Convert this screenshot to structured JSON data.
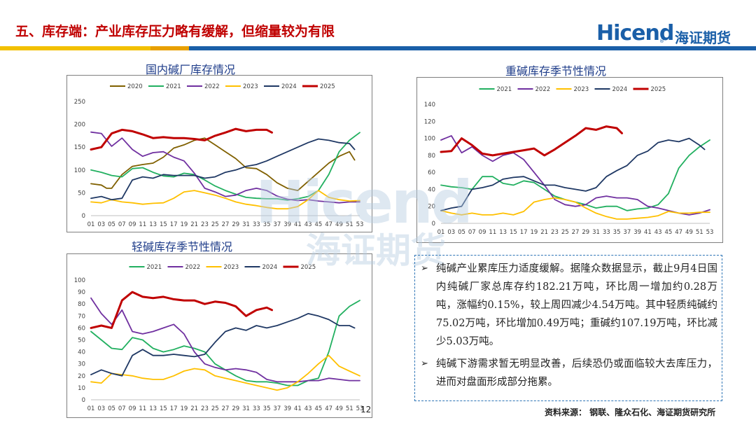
{
  "header": {
    "title": "五、库存端：产业库存压力略有缓解，但缩量较为有限",
    "logo_en": "Hicend",
    "logo_reg": "®",
    "logo_cn": "海证期货"
  },
  "watermark": {
    "en": "Hicend",
    "cn": "海证期货"
  },
  "charts": {
    "c1_title": "国内碱厂库存情况",
    "c2_title": "重碱库存季节性情况",
    "c3_title": "轻碱库存季节性情况"
  },
  "textbox": {
    "bullet_symbol": "➢",
    "p1": "纯碱产业累库压力适度缓解。据隆众数据显示，截止9月4日国内纯碱厂家总库存约182.21万吨，环比周一增加约0.28万吨，涨幅约0.15%，较上周四减少4.54万吨。其中轻质纯碱约75.02万吨，环比增加0.49万吨；重碱约107.19万吨，环比减少5.03万吨。",
    "p2": "纯碱下游需求暂无明显改善，后续恐仍或面临较大去库压力，进而对盘面形成部分拖累。"
  },
  "footer": {
    "source": "资料来源：  钢联、隆众石化、海证期货研究所",
    "page": "12"
  },
  "colors": {
    "2020": "#806000",
    "2021": "#22b060",
    "2022": "#7030a0",
    "2023": "#ffc000",
    "2024": "#1f3864",
    "2025": "#c00000"
  },
  "chart_data": [
    {
      "type": "line",
      "title": "国内碱厂库存情况",
      "xlabel": "",
      "ylabel": "",
      "ylim": [
        0,
        250
      ],
      "yticks": [
        0,
        50,
        100,
        150,
        200,
        250
      ],
      "xticks": [
        "01",
        "03",
        "05",
        "07",
        "09",
        "11",
        "13",
        "15",
        "17",
        "19",
        "21",
        "23",
        "25",
        "27",
        "29",
        "31",
        "33",
        "35",
        "37",
        "39",
        "41",
        "43",
        "45",
        "47",
        "49",
        "51",
        "53"
      ],
      "legend": "top",
      "grid": false,
      "series": [
        {
          "name": "2020",
          "color": "#806000",
          "x": [
            1,
            3,
            4,
            5,
            7,
            9,
            11,
            13,
            15,
            17,
            19,
            21,
            23,
            25,
            27,
            29,
            31,
            33,
            35,
            37,
            39,
            41,
            43,
            45,
            47,
            49,
            51,
            52
          ],
          "values": [
            70,
            67,
            60,
            60,
            90,
            108,
            112,
            115,
            128,
            148,
            155,
            165,
            170,
            155,
            140,
            125,
            105,
            103,
            90,
            72,
            60,
            55,
            75,
            95,
            115,
            130,
            140,
            122
          ]
        },
        {
          "name": "2021",
          "color": "#22b060",
          "x": [
            1,
            3,
            5,
            7,
            9,
            11,
            13,
            15,
            17,
            19,
            21,
            23,
            25,
            27,
            29,
            31,
            33,
            35,
            37,
            39,
            41,
            43,
            45,
            47,
            49,
            51,
            53
          ],
          "values": [
            100,
            95,
            88,
            85,
            103,
            105,
            95,
            87,
            85,
            93,
            90,
            78,
            65,
            55,
            47,
            40,
            38,
            37,
            37,
            34,
            37,
            42,
            55,
            90,
            140,
            165,
            182
          ]
        },
        {
          "name": "2022",
          "color": "#7030a0",
          "x": [
            1,
            3,
            5,
            7,
            9,
            11,
            13,
            15,
            17,
            19,
            21,
            23,
            25,
            27,
            29,
            31,
            33,
            35,
            37,
            39,
            41,
            43,
            45,
            47,
            49,
            51,
            53
          ],
          "values": [
            183,
            180,
            152,
            170,
            145,
            130,
            138,
            140,
            128,
            120,
            93,
            60,
            52,
            42,
            45,
            55,
            60,
            55,
            43,
            36,
            33,
            35,
            32,
            30,
            28,
            30,
            30
          ]
        },
        {
          "name": "2023",
          "color": "#ffc000",
          "x": [
            1,
            3,
            5,
            7,
            9,
            11,
            13,
            15,
            17,
            19,
            21,
            23,
            25,
            27,
            29,
            31,
            33,
            35,
            37,
            39,
            41,
            43,
            45,
            47,
            49,
            51,
            53
          ],
          "values": [
            30,
            28,
            35,
            30,
            28,
            25,
            27,
            28,
            38,
            52,
            55,
            50,
            45,
            38,
            30,
            25,
            22,
            18,
            15,
            15,
            20,
            35,
            55,
            40,
            35,
            32,
            33
          ]
        },
        {
          "name": "2024",
          "color": "#1f3864",
          "x": [
            1,
            3,
            5,
            7,
            9,
            11,
            13,
            15,
            17,
            19,
            21,
            23,
            25,
            27,
            29,
            31,
            33,
            35,
            37,
            39,
            41,
            43,
            45,
            47,
            49,
            51,
            52
          ],
          "values": [
            38,
            42,
            35,
            38,
            78,
            85,
            82,
            90,
            88,
            88,
            88,
            82,
            85,
            95,
            100,
            108,
            112,
            120,
            130,
            140,
            150,
            160,
            168,
            165,
            160,
            158,
            145
          ]
        },
        {
          "name": "2025",
          "color": "#c00000",
          "x": [
            1,
            3,
            5,
            7,
            9,
            11,
            13,
            15,
            17,
            19,
            21,
            23,
            25,
            27,
            29,
            31,
            33,
            35,
            36
          ],
          "values": [
            145,
            150,
            180,
            188,
            185,
            178,
            170,
            172,
            170,
            170,
            168,
            165,
            175,
            182,
            190,
            185,
            188,
            188,
            182
          ]
        }
      ]
    },
    {
      "type": "line",
      "title": "重碱库存季节性情况",
      "xlabel": "",
      "ylabel": "",
      "ylim": [
        0,
        140
      ],
      "yticks": [
        0,
        20,
        40,
        60,
        80,
        100,
        120,
        140
      ],
      "xticks": [
        "01",
        "03",
        "05",
        "07",
        "09",
        "11",
        "13",
        "15",
        "17",
        "19",
        "21",
        "23",
        "25",
        "27",
        "29",
        "31",
        "33",
        "35",
        "37",
        "39",
        "41",
        "43",
        "45",
        "47",
        "49",
        "51",
        "53"
      ],
      "legend": "top",
      "grid": false,
      "series": [
        {
          "name": "2021",
          "color": "#22b060",
          "x": [
            1,
            3,
            5,
            7,
            9,
            11,
            13,
            15,
            17,
            19,
            21,
            23,
            25,
            27,
            29,
            31,
            33,
            35,
            37,
            39,
            41,
            43,
            45,
            47,
            49,
            51,
            53
          ],
          "values": [
            45,
            43,
            42,
            40,
            55,
            55,
            47,
            45,
            50,
            48,
            40,
            32,
            28,
            25,
            22,
            18,
            20,
            20,
            15,
            17,
            18,
            22,
            35,
            65,
            80,
            90,
            98
          ]
        },
        {
          "name": "2022",
          "color": "#7030a0",
          "x": [
            1,
            3,
            5,
            7,
            9,
            11,
            13,
            15,
            17,
            19,
            21,
            23,
            25,
            27,
            29,
            31,
            33,
            35,
            37,
            39,
            41,
            43,
            45,
            47,
            49,
            51,
            53
          ],
          "values": [
            98,
            103,
            83,
            90,
            80,
            73,
            80,
            83,
            75,
            60,
            45,
            28,
            22,
            20,
            22,
            30,
            32,
            30,
            30,
            28,
            20,
            18,
            15,
            12,
            10,
            12,
            16
          ]
        },
        {
          "name": "2023",
          "color": "#ffc000",
          "x": [
            1,
            3,
            5,
            7,
            9,
            11,
            13,
            15,
            17,
            19,
            21,
            23,
            25,
            27,
            29,
            31,
            33,
            35,
            37,
            39,
            41,
            43,
            45,
            47,
            49,
            51,
            53
          ],
          "values": [
            15,
            12,
            10,
            12,
            10,
            10,
            12,
            10,
            14,
            25,
            28,
            30,
            28,
            25,
            18,
            12,
            8,
            5,
            5,
            6,
            7,
            9,
            14,
            12,
            12,
            13,
            13
          ]
        },
        {
          "name": "2024",
          "color": "#1f3864",
          "x": [
            1,
            3,
            5,
            7,
            9,
            11,
            13,
            15,
            17,
            19,
            21,
            23,
            25,
            27,
            29,
            31,
            33,
            35,
            37,
            39,
            41,
            43,
            45,
            47,
            49,
            51,
            52
          ],
          "values": [
            15,
            18,
            20,
            40,
            42,
            45,
            52,
            54,
            55,
            50,
            45,
            45,
            42,
            40,
            38,
            42,
            55,
            62,
            68,
            80,
            85,
            95,
            98,
            96,
            100,
            92,
            87
          ]
        },
        {
          "name": "2025",
          "color": "#c00000",
          "x": [
            1,
            3,
            5,
            7,
            9,
            11,
            13,
            15,
            17,
            19,
            21,
            23,
            25,
            27,
            29,
            31,
            33,
            35,
            36
          ],
          "values": [
            84,
            85,
            100,
            92,
            82,
            80,
            82,
            84,
            86,
            88,
            80,
            87,
            95,
            103,
            112,
            110,
            114,
            112,
            106
          ]
        }
      ]
    },
    {
      "type": "line",
      "title": "轻碱库存季节性情况",
      "xlabel": "",
      "ylabel": "",
      "ylim": [
        0,
        100
      ],
      "yticks": [
        0,
        10,
        20,
        30,
        40,
        50,
        60,
        70,
        80,
        90,
        100
      ],
      "xticks": [
        "01",
        "03",
        "05",
        "07",
        "09",
        "11",
        "13",
        "15",
        "17",
        "19",
        "21",
        "23",
        "25",
        "27",
        "29",
        "31",
        "33",
        "35",
        "37",
        "39",
        "41",
        "43",
        "45",
        "47",
        "49",
        "51",
        "53"
      ],
      "legend": "top",
      "grid": false,
      "series": [
        {
          "name": "2021",
          "color": "#22b060",
          "x": [
            1,
            3,
            5,
            7,
            9,
            11,
            13,
            15,
            17,
            19,
            21,
            23,
            25,
            27,
            29,
            31,
            33,
            35,
            37,
            39,
            41,
            43,
            45,
            47,
            49,
            51,
            53
          ],
          "values": [
            57,
            50,
            43,
            42,
            52,
            50,
            43,
            40,
            42,
            45,
            43,
            40,
            30,
            25,
            20,
            16,
            15,
            15,
            14,
            12,
            12,
            16,
            18,
            40,
            70,
            78,
            83
          ]
        },
        {
          "name": "2022",
          "color": "#7030a0",
          "x": [
            1,
            3,
            5,
            7,
            9,
            11,
            13,
            15,
            17,
            19,
            21,
            23,
            25,
            27,
            29,
            31,
            33,
            35,
            37,
            39,
            41,
            43,
            45,
            47,
            49,
            51,
            53
          ],
          "values": [
            85,
            72,
            63,
            75,
            57,
            55,
            57,
            60,
            63,
            55,
            40,
            30,
            27,
            25,
            26,
            25,
            23,
            17,
            15,
            15,
            15,
            16,
            16,
            18,
            17,
            16,
            16
          ]
        },
        {
          "name": "2023",
          "color": "#ffc000",
          "x": [
            1,
            3,
            5,
            7,
            9,
            11,
            13,
            15,
            17,
            19,
            21,
            23,
            25,
            27,
            29,
            31,
            33,
            35,
            37,
            39,
            41,
            43,
            45,
            47,
            49,
            51,
            53
          ],
          "values": [
            15,
            14,
            22,
            21,
            20,
            18,
            17,
            17,
            20,
            24,
            26,
            25,
            20,
            18,
            16,
            14,
            12,
            10,
            8,
            10,
            15,
            22,
            30,
            37,
            28,
            24,
            20
          ]
        },
        {
          "name": "2024",
          "color": "#1f3864",
          "x": [
            1,
            3,
            5,
            7,
            9,
            11,
            13,
            15,
            17,
            19,
            21,
            23,
            25,
            27,
            29,
            31,
            33,
            35,
            37,
            39,
            41,
            43,
            45,
            47,
            49,
            51,
            52
          ],
          "values": [
            21,
            25,
            22,
            20,
            37,
            42,
            37,
            37,
            38,
            37,
            36,
            38,
            48,
            57,
            60,
            58,
            62,
            60,
            62,
            65,
            68,
            72,
            70,
            67,
            62,
            62,
            60
          ]
        },
        {
          "name": "2025",
          "color": "#c00000",
          "x": [
            1,
            3,
            5,
            7,
            9,
            11,
            13,
            15,
            17,
            19,
            21,
            23,
            25,
            27,
            29,
            31,
            33,
            35,
            36
          ],
          "values": [
            60,
            62,
            60,
            83,
            90,
            86,
            85,
            86,
            84,
            83,
            83,
            80,
            82,
            81,
            78,
            70,
            75,
            77,
            75
          ]
        }
      ]
    }
  ]
}
